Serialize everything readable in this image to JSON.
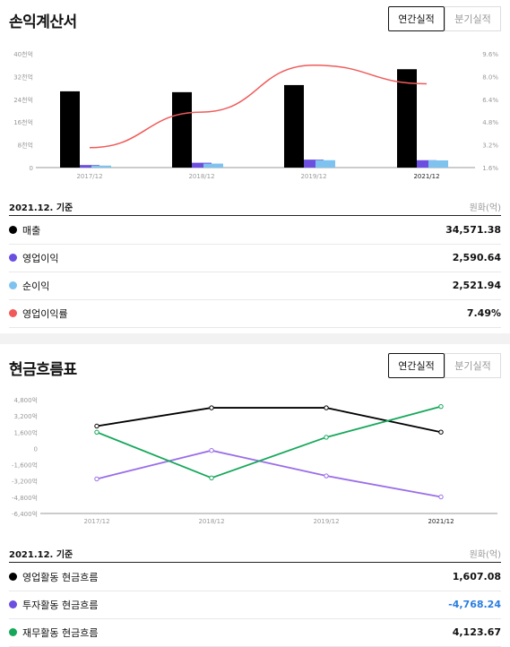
{
  "income": {
    "title": "손익계산서",
    "tabs": [
      "연간실적",
      "분기실적"
    ],
    "basis": "2021.12. 기준",
    "unit": "원화(억)",
    "rows": [
      {
        "label": "매출",
        "value": "34,571.38",
        "color": "#000000"
      },
      {
        "label": "영업이익",
        "value": "2,590.64",
        "color": "#6b4fe0"
      },
      {
        "label": "순이익",
        "value": "2,521.94",
        "color": "#7ec3f0"
      },
      {
        "label": "영업이익률",
        "value": "7.49%",
        "color": "#f05a5a"
      }
    ],
    "chart_data": {
      "type": "bar",
      "categories": [
        "2017/12",
        "2018/12",
        "2019/12",
        "2021/12"
      ],
      "series": [
        {
          "name": "매출",
          "values": [
            26800,
            26500,
            29000,
            34571.38
          ],
          "color": "#000000"
        },
        {
          "name": "영업이익",
          "values": [
            900,
            1700,
            2800,
            2590.64
          ],
          "color": "#6b4fe0"
        },
        {
          "name": "순이익",
          "values": [
            700,
            1400,
            2600,
            2521.94
          ],
          "color": "#7ec3f0"
        },
        {
          "name": "영업이익률",
          "values": [
            3.0,
            5.5,
            8.8,
            7.49
          ],
          "color": "#f05a5a",
          "axis": "right",
          "kind": "line"
        }
      ],
      "yticks_left": [
        "0",
        "8천억",
        "16천억",
        "24천억",
        "32천억",
        "40천억"
      ],
      "ylim_left": [
        0,
        40000
      ],
      "yticks_right": [
        "1.6%",
        "3.2%",
        "4.8%",
        "6.4%",
        "8.0%",
        "9.6%"
      ],
      "ylim_right": [
        1.6,
        9.6
      ]
    }
  },
  "cashflow": {
    "title": "현금흐름표",
    "tabs": [
      "연간실적",
      "분기실적"
    ],
    "basis": "2021.12. 기준",
    "unit": "원화(억)",
    "rows": [
      {
        "label": "영업활동 현금흐름",
        "value": "1,607.08",
        "color": "#000000",
        "negative": false
      },
      {
        "label": "투자활동 현금흐름",
        "value": "-4,768.24",
        "color": "#6b4fe0",
        "negative": true
      },
      {
        "label": "재무활동 현금흐름",
        "value": "4,123.67",
        "color": "#16a85a",
        "negative": false
      }
    ],
    "chart_data": {
      "type": "line",
      "categories": [
        "2017/12",
        "2018/12",
        "2019/12",
        "2021/12"
      ],
      "series": [
        {
          "name": "영업활동 현금흐름",
          "values": [
            2200,
            4000,
            4000,
            1607.08
          ],
          "color": "#000000"
        },
        {
          "name": "투자활동 현금흐름",
          "values": [
            -3000,
            -200,
            -2700,
            -4768.24
          ],
          "color": "#9a6ee8"
        },
        {
          "name": "재무활동 현금흐름",
          "values": [
            1600,
            -2900,
            1100,
            4123.67
          ],
          "color": "#16a85a"
        }
      ],
      "yticks": [
        "-6,400억",
        "-4,800억",
        "-3,200억",
        "-1,600억",
        "0",
        "1,600억",
        "3,200억",
        "4,800억"
      ],
      "ylim": [
        -6400,
        4800
      ]
    }
  }
}
